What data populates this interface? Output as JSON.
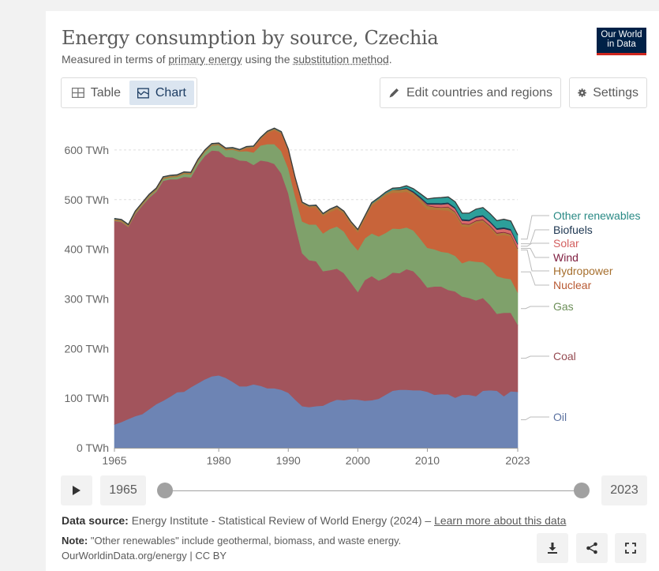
{
  "header": {
    "title": "Energy consumption by source, Czechia",
    "subtitle_pre": "Measured in terms of ",
    "subtitle_link1": "primary energy",
    "subtitle_mid": " using the ",
    "subtitle_link2": "substitution method",
    "subtitle_post": ".",
    "logo_line1": "Our World",
    "logo_line2": "in Data"
  },
  "toolbar": {
    "tab_table": "Table",
    "tab_chart": "Chart",
    "active_tab": "Chart",
    "edit_label": "Edit countries and regions",
    "settings_label": "Settings"
  },
  "timeline": {
    "start_year": "1965",
    "end_year": "2023"
  },
  "footer": {
    "source_label": "Data source:",
    "source_text": "Energy Institute - Statistical Review of World Energy (2024) – ",
    "source_link": "Learn more about this data",
    "note_label": "Note:",
    "note_text": "\"Other renewables\" include geothermal, biomass, and waste energy.",
    "url": "OurWorldinData.org/energy | CC BY"
  },
  "colors": {
    "Oil": "#6d84b4",
    "Coal": "#a2545c",
    "Gas": "#7fa16b",
    "Nuclear": "#c8643a",
    "Hydropower": "#b07a3c",
    "Wind": "#7e1d3f",
    "Solar": "#d96a6a",
    "Biofuels": "#1c3550",
    "Other renewables": "#2c9f9a"
  },
  "chart_data": {
    "type": "area",
    "stacked": true,
    "x": [
      1965,
      1966,
      1967,
      1968,
      1969,
      1970,
      1971,
      1972,
      1973,
      1974,
      1975,
      1976,
      1977,
      1978,
      1979,
      1980,
      1981,
      1982,
      1983,
      1984,
      1985,
      1986,
      1987,
      1988,
      1989,
      1990,
      1991,
      1992,
      1993,
      1994,
      1995,
      1996,
      1997,
      1998,
      1999,
      2000,
      2001,
      2002,
      2003,
      2004,
      2005,
      2006,
      2007,
      2008,
      2009,
      2010,
      2011,
      2012,
      2013,
      2014,
      2015,
      2016,
      2017,
      2018,
      2019,
      2020,
      2021,
      2022,
      2023
    ],
    "series": [
      {
        "name": "Oil",
        "values": [
          47,
          52,
          58,
          64,
          68,
          78,
          88,
          95,
          103,
          112,
          113,
          122,
          130,
          138,
          144,
          146,
          141,
          133,
          124,
          124,
          128,
          125,
          120,
          120,
          117,
          111,
          97,
          84,
          82,
          84,
          85,
          92,
          97,
          96,
          98,
          97,
          95,
          96,
          99,
          107,
          115,
          117,
          117,
          116,
          116,
          113,
          107,
          108,
          108,
          101,
          107,
          107,
          104,
          115,
          116,
          115,
          104,
          114,
          113
        ]
      },
      {
        "name": "Coal",
        "values": [
          410,
          403,
          387,
          407,
          420,
          426,
          428,
          443,
          438,
          429,
          433,
          423,
          440,
          450,
          455,
          452,
          445,
          452,
          455,
          454,
          442,
          454,
          457,
          452,
          436,
          402,
          351,
          308,
          296,
          292,
          271,
          266,
          264,
          256,
          235,
          217,
          243,
          250,
          238,
          236,
          238,
          235,
          243,
          240,
          225,
          210,
          218,
          217,
          210,
          214,
          198,
          195,
          193,
          187,
          172,
          155,
          168,
          158,
          135
        ]
      },
      {
        "name": "Gas",
        "values": [
          1,
          1,
          1,
          2,
          2,
          3,
          3,
          4,
          4,
          5,
          6,
          6,
          7,
          8,
          10,
          12,
          14,
          16,
          18,
          20,
          25,
          30,
          35,
          40,
          45,
          50,
          58,
          64,
          72,
          74,
          76,
          83,
          85,
          84,
          81,
          84,
          84,
          86,
          89,
          90,
          89,
          89,
          84,
          82,
          80,
          80,
          75,
          70,
          75,
          72,
          67,
          75,
          78,
          72,
          75,
          76,
          70,
          68,
          65
        ]
      },
      {
        "name": "Nuclear",
        "values": [
          0,
          0,
          0,
          0,
          0,
          0,
          0,
          0,
          0,
          0,
          0,
          0,
          0,
          0,
          0,
          0,
          0,
          0,
          0,
          5,
          9,
          12,
          22,
          28,
          35,
          35,
          34,
          35,
          34,
          34,
          35,
          34,
          35,
          36,
          36,
          36,
          39,
          55,
          72,
          75,
          72,
          73,
          72,
          71,
          74,
          77,
          80,
          84,
          85,
          83,
          74,
          68,
          78,
          81,
          80,
          81,
          87,
          86,
          83
        ]
      },
      {
        "name": "Hydropower",
        "values": [
          3,
          3,
          3,
          3,
          3,
          3,
          3,
          3,
          3,
          3,
          3,
          3,
          3,
          3,
          3,
          3,
          3,
          3,
          3,
          3,
          3,
          3,
          3,
          3,
          3,
          3,
          3,
          3,
          3,
          4,
          4,
          5,
          5,
          4,
          5,
          5,
          5,
          5,
          4,
          5,
          6,
          6,
          6,
          5,
          7,
          8,
          5,
          5,
          7,
          5,
          5,
          5,
          4,
          4,
          4,
          5,
          5,
          4,
          5
        ]
      },
      {
        "name": "Wind",
        "values": [
          0,
          0,
          0,
          0,
          0,
          0,
          0,
          0,
          0,
          0,
          0,
          0,
          0,
          0,
          0,
          0,
          0,
          0,
          0,
          0,
          0,
          0,
          0,
          0,
          0,
          0,
          0,
          0,
          0,
          0,
          0,
          0,
          0,
          0,
          0,
          0,
          0,
          0,
          0,
          0,
          0,
          0,
          0,
          0.5,
          0.6,
          0.8,
          1,
          1,
          1,
          1.2,
          1.3,
          1.2,
          1.3,
          1.5,
          1.6,
          1.6,
          1.4,
          1.5,
          1.6
        ]
      },
      {
        "name": "Solar",
        "values": [
          0,
          0,
          0,
          0,
          0,
          0,
          0,
          0,
          0,
          0,
          0,
          0,
          0,
          0,
          0,
          0,
          0,
          0,
          0,
          0,
          0,
          0,
          0,
          0,
          0,
          0,
          0,
          0,
          0,
          0,
          0,
          0,
          0,
          0,
          0,
          0,
          0,
          0,
          0,
          0,
          0,
          0,
          0,
          0,
          0.3,
          1.5,
          4.5,
          5,
          5.5,
          5.5,
          5.5,
          5.5,
          5.5,
          5.5,
          5.5,
          6,
          6,
          6.5,
          7
        ]
      },
      {
        "name": "Biofuels",
        "values": [
          0,
          0,
          0,
          0,
          0,
          0,
          0,
          0,
          0,
          0,
          0,
          0,
          0,
          0,
          0,
          0,
          0,
          0,
          0,
          0,
          0,
          0,
          0,
          0,
          0,
          0,
          0,
          0,
          0,
          0,
          0,
          0,
          0,
          0,
          0,
          0,
          0,
          0,
          0,
          0,
          0,
          1,
          2,
          2.5,
          3,
          3,
          3,
          3,
          3,
          3,
          3,
          3,
          3,
          3,
          3,
          3,
          3,
          3,
          3
        ]
      },
      {
        "name": "Other renewables",
        "values": [
          1,
          1,
          1,
          1,
          1,
          1,
          1,
          1,
          1,
          1,
          1,
          1,
          1,
          1,
          1,
          1,
          1,
          1,
          1,
          1,
          1,
          1,
          1,
          1,
          1,
          1,
          1,
          1,
          1,
          1,
          1,
          1,
          1,
          1,
          1,
          1,
          1,
          2,
          2,
          2,
          3,
          3,
          4,
          5,
          6,
          8,
          10,
          11,
          11,
          11,
          12,
          13,
          14,
          15,
          15,
          15,
          16,
          16,
          16
        ]
      }
    ],
    "y_ticks": [
      "0 TWh",
      "100 TWh",
      "200 TWh",
      "300 TWh",
      "400 TWh",
      "500 TWh",
      "600 TWh"
    ],
    "y_tick_values": [
      0,
      100,
      200,
      300,
      400,
      500,
      600
    ],
    "x_ticks": [
      "1965",
      "1980",
      "1990",
      "2000",
      "2010",
      "2023"
    ],
    "x_tick_values": [
      1965,
      1980,
      1990,
      2000,
      2010,
      2023
    ],
    "ylim": [
      0,
      665
    ],
    "xlim": [
      1965,
      2023
    ],
    "grid": "horizontal-dashed",
    "legend_placement": "right-inline",
    "legend_order": [
      "Other renewables",
      "Biofuels",
      "Solar",
      "Wind",
      "Hydropower",
      "Nuclear",
      "Gas",
      "Coal",
      "Oil"
    ]
  }
}
